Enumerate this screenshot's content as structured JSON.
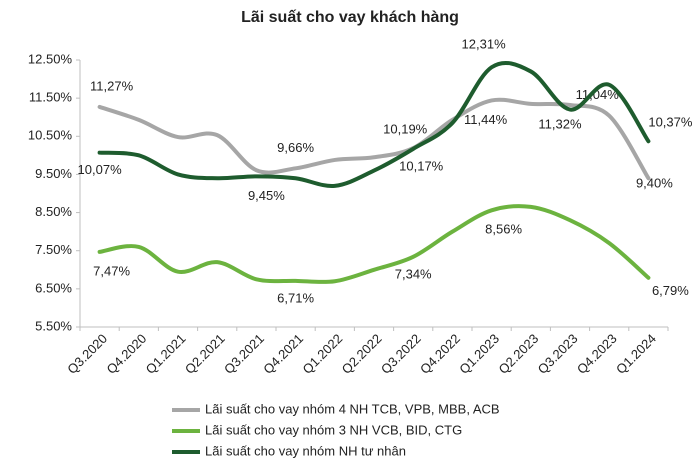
{
  "chart_data": {
    "type": "line",
    "title": "Lãi suất cho vay khách hàng",
    "categories": [
      "Q3.2020",
      "Q4.2020",
      "Q1.2021",
      "Q2.2021",
      "Q3.2021",
      "Q4.2021",
      "Q1.2022",
      "Q2.2022",
      "Q3.2022",
      "Q4.2022",
      "Q1.2023",
      "Q2.2023",
      "Q3.2023",
      "Q4.2023",
      "Q1.2024"
    ],
    "ylim": [
      5.5,
      12.5
    ],
    "yticks": [
      {
        "value": 5.5,
        "label": "5.50%"
      },
      {
        "value": 6.5,
        "label": "6.50%"
      },
      {
        "value": 7.5,
        "label": "7.50%"
      },
      {
        "value": 8.5,
        "label": "8.50%"
      },
      {
        "value": 9.5,
        "label": "9.50%"
      },
      {
        "value": 10.5,
        "label": "10.50%"
      },
      {
        "value": 11.5,
        "label": "11.50%"
      },
      {
        "value": 12.5,
        "label": "12.50%"
      }
    ],
    "grid": false,
    "legend": "bottom",
    "series": [
      {
        "name": "Lãi suất cho vay nhóm 4 NH TCB, VPB, MBB, ACB",
        "color": "#a6a6a6",
        "values": [
          11.27,
          10.93,
          10.48,
          10.53,
          9.61,
          9.66,
          9.88,
          9.95,
          10.19,
          10.93,
          11.44,
          11.35,
          11.32,
          11.04,
          9.4
        ],
        "value_labels": [
          "11,27%",
          null,
          null,
          null,
          null,
          "9,66%",
          null,
          null,
          "10,19%",
          null,
          "11,44%",
          null,
          "11,32%",
          "11,04%",
          "9,40%"
        ]
      },
      {
        "name": "Lãi suất cho vay nhóm 3 NH VCB, BID, CTG",
        "color": "#6cb33f",
        "values": [
          7.47,
          7.6,
          6.95,
          7.2,
          6.75,
          6.71,
          6.7,
          7.0,
          7.34,
          8.0,
          8.56,
          8.65,
          8.3,
          7.7,
          6.79
        ],
        "value_labels": [
          "7,47%",
          null,
          null,
          null,
          null,
          "6,71%",
          null,
          null,
          "7,34%",
          null,
          "8,56%",
          null,
          null,
          null,
          "6,79%"
        ]
      },
      {
        "name": "Lãi suất cho vay nhóm NH tư nhân",
        "color": "#1e5c2e",
        "values": [
          10.07,
          10.0,
          9.5,
          9.4,
          9.45,
          9.4,
          9.2,
          9.6,
          10.17,
          10.85,
          12.31,
          12.2,
          11.2,
          11.85,
          10.37
        ],
        "value_labels": [
          "10,07%",
          null,
          null,
          null,
          "9,45%",
          null,
          null,
          null,
          "10,17%",
          null,
          "12,31%",
          null,
          null,
          null,
          "10,37%"
        ]
      }
    ]
  }
}
